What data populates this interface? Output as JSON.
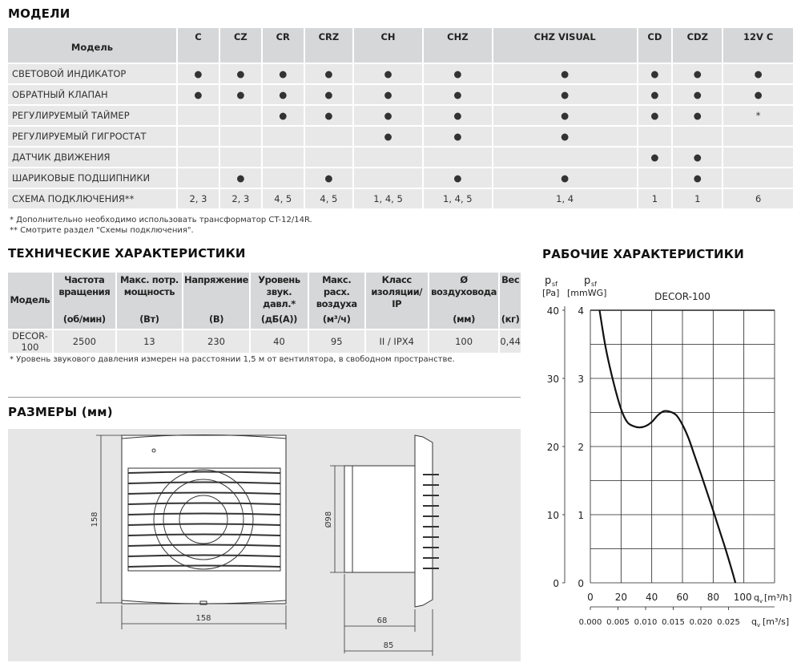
{
  "models_section": {
    "title": "МОДЕЛИ",
    "header_label": "Модель",
    "models": [
      "C",
      "CZ",
      "CR",
      "CRZ",
      "CH",
      "CHZ",
      "CHZ VISUAL",
      "CD",
      "CDZ",
      "12V C"
    ],
    "rows": [
      {
        "label": "СВЕТОВОЙ ИНДИКАТОР",
        "values": [
          "●",
          "●",
          "●",
          "●",
          "●",
          "●",
          "●",
          "●",
          "●",
          "●"
        ]
      },
      {
        "label": "ОБРАТНЫЙ КЛАПАН",
        "values": [
          "●",
          "●",
          "●",
          "●",
          "●",
          "●",
          "●",
          "●",
          "●",
          "●"
        ]
      },
      {
        "label": "РЕГУЛИРУЕМЫЙ ТАЙМЕР",
        "values": [
          "",
          "",
          "●",
          "●",
          "●",
          "●",
          "●",
          "●",
          "●",
          "*"
        ]
      },
      {
        "label": "РЕГУЛИРУЕМЫЙ ГИГРОСТАТ",
        "values": [
          "",
          "",
          "",
          "",
          "●",
          "●",
          "●",
          "",
          "",
          ""
        ]
      },
      {
        "label": "ДАТЧИК ДВИЖЕНИЯ",
        "values": [
          "",
          "",
          "",
          "",
          "",
          "",
          "",
          "●",
          "●",
          ""
        ]
      },
      {
        "label": "ШАРИКОВЫЕ ПОДШИПНИКИ",
        "values": [
          "",
          "●",
          "",
          "●",
          "",
          "●",
          "●",
          "",
          "●",
          ""
        ]
      },
      {
        "label": "СХЕМА ПОДКЛЮЧЕНИЯ**",
        "values": [
          "2, 3",
          "2, 3",
          "4, 5",
          "4, 5",
          "1, 4, 5",
          "1, 4, 5",
          "1, 4",
          "1",
          "1",
          "6"
        ]
      }
    ],
    "notes": [
      "* Дополнительно необходимо использовать трансформатор CT-12/14R.",
      "** Смотрите раздел \"Схемы подключения\"."
    ]
  },
  "tech_section": {
    "title": "ТЕХНИЧЕСКИЕ ХАРАКТЕРИСТИКИ",
    "columns": [
      {
        "name": "Модель",
        "unit": ""
      },
      {
        "name": "Частота вращения",
        "unit": "(об/мин)"
      },
      {
        "name": "Макс. потр. мощность",
        "unit": "(Вт)"
      },
      {
        "name": "Напряжение",
        "unit": "(В)"
      },
      {
        "name": "Уровень звук. давл.*",
        "unit": "(дБ(А))"
      },
      {
        "name": "Макс. расх. воздуха",
        "unit": "(м³/ч)"
      },
      {
        "name": "Класс изоляции/ IP",
        "unit": ""
      },
      {
        "name": "Ø воздуховода",
        "unit": "(мм)"
      },
      {
        "name": "Вес",
        "unit": "(кг)"
      }
    ],
    "row": [
      "DECOR-100",
      "2500",
      "13",
      "230",
      "40",
      "95",
      "II / IPX4",
      "100",
      "0,44"
    ],
    "note": "* Уровень звукового давления измерен на расстоянии 1,5 м от вентилятора, в свободном пространстве."
  },
  "dims_section": {
    "title": "РАЗМЕРЫ (мм)",
    "height": "158",
    "width": "158",
    "diameter": "Ø98",
    "depth_body": "68",
    "depth_total": "85"
  },
  "perf_section": {
    "title": "РАБОЧИЕ ХАРАКТЕРИСТИКИ"
  },
  "chart_data": {
    "type": "line",
    "title": "DECOR-100",
    "ylabel_left": {
      "sym": "p",
      "sub": "sf",
      "unit": "[Pa]"
    },
    "ylabel_right": {
      "sym": "p",
      "sub": "sf",
      "unit": "[mmWG]"
    },
    "xlabel": {
      "sym": "q",
      "sub": "v",
      "unit": "[m³/h]"
    },
    "xlabel2": {
      "sym": "q",
      "sub": "v",
      "unit": "[m³/s]"
    },
    "xlim": [
      0,
      120
    ],
    "ylim": [
      0,
      40
    ],
    "x_ticks": [
      "0",
      "20",
      "40",
      "60",
      "80",
      "100"
    ],
    "y_ticks_pa": [
      "0",
      "10",
      "20",
      "30",
      "40"
    ],
    "y_ticks_mmwg": [
      "0",
      "1",
      "2",
      "3",
      "4"
    ],
    "x2_ticks": [
      "0.000",
      "0.005",
      "0.010",
      "0.015",
      "0.020",
      "0.025"
    ],
    "grid": true,
    "series": [
      {
        "x": [
          6,
          10,
          15,
          20,
          24,
          28,
          32,
          36,
          40,
          44,
          48,
          52,
          56,
          60,
          64,
          68,
          72,
          76,
          80,
          84,
          88,
          92,
          94.5
        ],
        "y": [
          40,
          34.5,
          29.5,
          25.5,
          23.6,
          23.0,
          22.8,
          23.0,
          23.6,
          24.6,
          25.2,
          25.1,
          24.6,
          23.2,
          21.2,
          18.6,
          16.0,
          13.3,
          10.6,
          7.8,
          5.0,
          2.0,
          0
        ]
      }
    ]
  }
}
